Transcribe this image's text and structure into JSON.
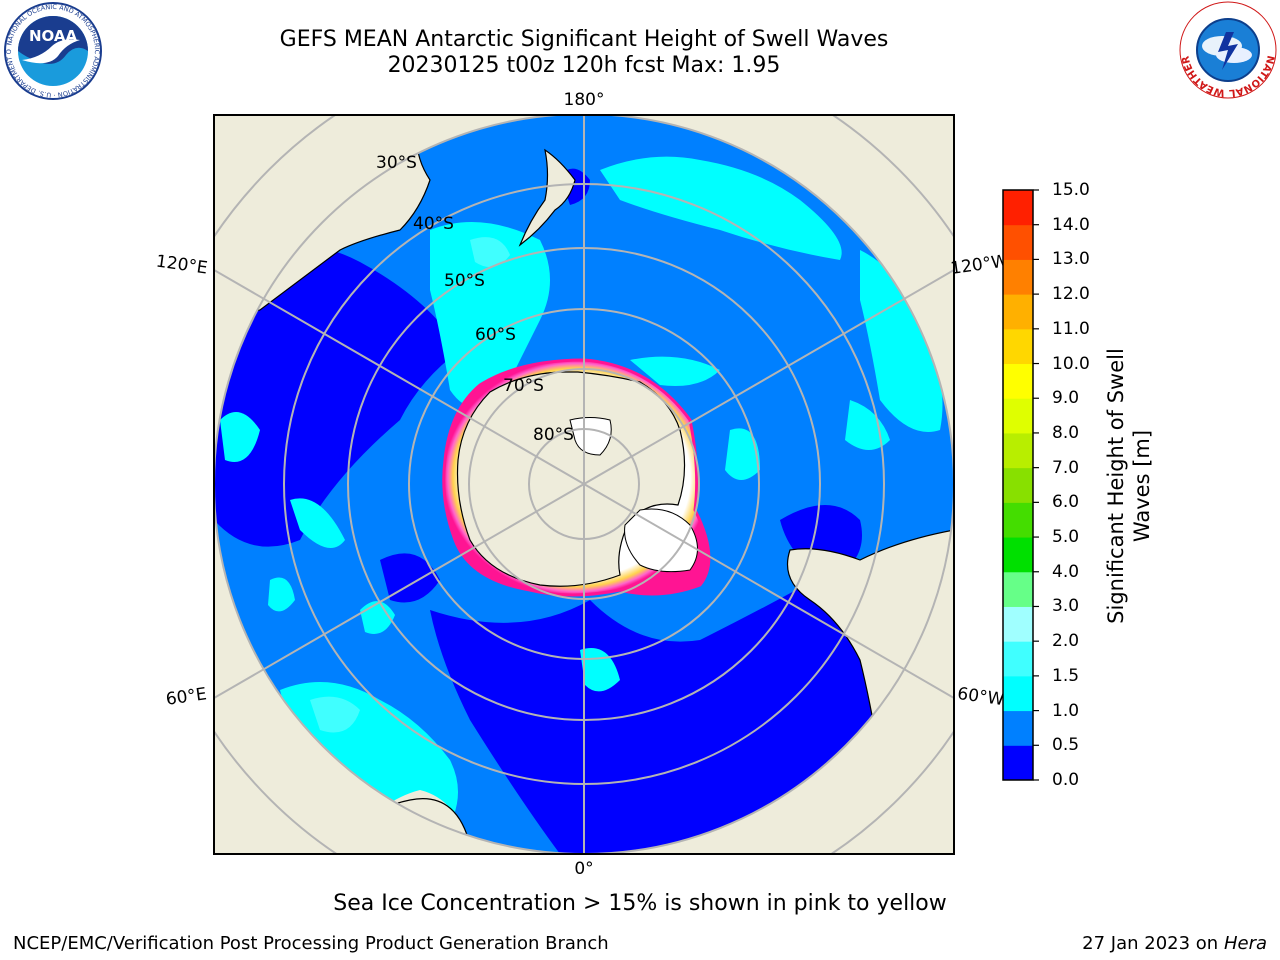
{
  "header": {
    "title_line1": "GEFS MEAN Antarctic Significant Height of Swell Waves",
    "title_line2": "20230125 t00z 120h fcst   Max: 1.95"
  },
  "map": {
    "projection": "south-polar-stereographic",
    "longitude_labels": [
      "180°",
      "120°E",
      "120°W",
      "60°E",
      "60°W",
      "0°"
    ],
    "latitude_labels": [
      "30°S",
      "40°S",
      "50°S",
      "60°S",
      "70°S",
      "80°S"
    ],
    "colors": {
      "land": "#eeecdb",
      "ice_shelf_white": "#ffffff",
      "grid": "#b4b4b4",
      "coast": "#000000",
      "sea_ice_edge": [
        "#ff1493",
        "#ff66cc",
        "#ffd24d",
        "#ffff66"
      ]
    }
  },
  "colorbar": {
    "label_line1": "Significant Height of Swell",
    "label_line2": "Waves [m]",
    "ticks": [
      "0.0",
      "0.5",
      "1.0",
      "1.5",
      "2.0",
      "3.0",
      "4.0",
      "5.0",
      "6.0",
      "7.0",
      "8.0",
      "9.0",
      "10.0",
      "11.0",
      "12.0",
      "13.0",
      "14.0",
      "15.0"
    ],
    "colors": [
      "#0000ff",
      "#0080ff",
      "#00ffff",
      "#40ffff",
      "#a0ffff",
      "#66ff88",
      "#00e000",
      "#44dd00",
      "#88e000",
      "#b8ee00",
      "#dfff00",
      "#ffff00",
      "#ffd700",
      "#ffb000",
      "#ff8000",
      "#ff5000",
      "#ff2000"
    ]
  },
  "caption": "Sea Ice Concentration > 15% is shown in pink to yellow",
  "footer": {
    "left": "NCEP/EMC/Verification Post Processing Product Generation Branch",
    "right_prefix": "27 Jan 2023 on ",
    "right_machine": "Hera"
  },
  "logos": {
    "left": "NOAA",
    "left_ring_text": "NATIONAL OCEANIC AND ATMOSPHERIC ADMINISTRATION · U.S. DEPARTMENT OF COMMERCE",
    "right_ring_text": "NATIONAL WEATHER SERVICE"
  }
}
